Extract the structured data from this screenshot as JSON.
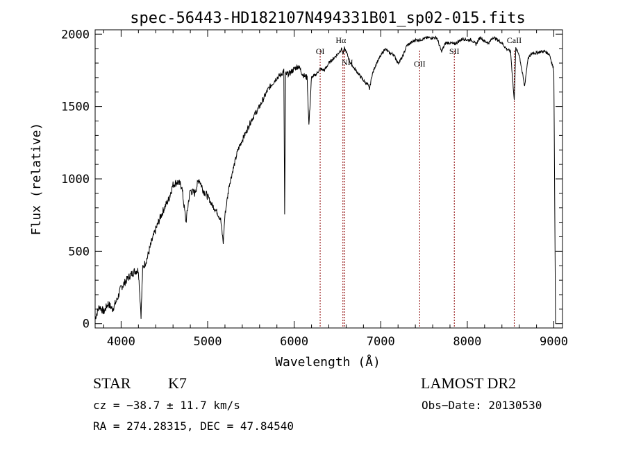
{
  "chart_data": {
    "type": "line",
    "title": "spec-56443-HD182107N494331B01_sp02-015.fits",
    "xlabel": "Wavelength (Å)",
    "ylabel": "Flux (relative)",
    "xlim": [
      3700,
      9100
    ],
    "ylim": [
      -30,
      2030
    ],
    "grid": false,
    "x_ticks": [
      4000,
      5000,
      6000,
      7000,
      8000,
      9000
    ],
    "x_tick_labels": [
      "4000",
      "5000",
      "6000",
      "7000",
      "8000",
      "9000"
    ],
    "y_ticks": [
      0,
      500,
      1000,
      1500,
      2000
    ],
    "y_tick_labels": [
      "0",
      "500",
      "1000",
      "1500",
      "2000"
    ],
    "series": [
      {
        "x": [
          3700,
          3750,
          3800,
          3850,
          3900,
          3950,
          4000,
          4050,
          4100,
          4150,
          4200,
          4230,
          4250,
          4300,
          4350,
          4400,
          4450,
          4500,
          4550,
          4600,
          4650,
          4700,
          4730,
          4750,
          4780,
          4800,
          4850,
          4900,
          4950,
          5000,
          5050,
          5100,
          5150,
          5180,
          5200,
          5250,
          5300,
          5350,
          5400,
          5450,
          5500,
          5550,
          5600,
          5650,
          5700,
          5750,
          5800,
          5850,
          5880,
          5890,
          5900,
          5950,
          6000,
          6050,
          6100,
          6150,
          6170,
          6200,
          6250,
          6300,
          6350,
          6400,
          6450,
          6500,
          6550,
          6563,
          6580,
          6600,
          6650,
          6700,
          6750,
          6800,
          6850,
          6870,
          6900,
          6950,
          7000,
          7050,
          7100,
          7150,
          7200,
          7250,
          7300,
          7350,
          7400,
          7450,
          7500,
          7550,
          7600,
          7650,
          7700,
          7750,
          7800,
          7850,
          7900,
          7950,
          8000,
          8050,
          8100,
          8150,
          8200,
          8250,
          8300,
          8350,
          8400,
          8450,
          8500,
          8542,
          8560,
          8600,
          8662,
          8700,
          8750,
          8800,
          8850,
          8900,
          8950,
          9000,
          9020
        ],
        "y": [
          40,
          120,
          80,
          140,
          100,
          160,
          250,
          290,
          330,
          360,
          370,
          60,
          380,
          450,
          560,
          650,
          730,
          800,
          860,
          960,
          980,
          950,
          800,
          700,
          850,
          920,
          900,
          1000,
          920,
          880,
          820,
          780,
          720,
          560,
          750,
          960,
          1080,
          1200,
          1270,
          1330,
          1400,
          1450,
          1500,
          1560,
          1620,
          1660,
          1700,
          1720,
          1750,
          760,
          1720,
          1730,
          1760,
          1780,
          1720,
          1700,
          1370,
          1700,
          1720,
          1760,
          1750,
          1800,
          1830,
          1860,
          1900,
          1860,
          1900,
          1880,
          1800,
          1760,
          1720,
          1680,
          1650,
          1620,
          1720,
          1800,
          1850,
          1900,
          1870,
          1860,
          1800,
          1840,
          1920,
          1940,
          1960,
          1960,
          1970,
          1975,
          1975,
          1975,
          1880,
          1940,
          1940,
          1930,
          1950,
          1970,
          1960,
          1960,
          1930,
          1980,
          1950,
          1940,
          1980,
          1960,
          1940,
          1900,
          1880,
          1540,
          1900,
          1860,
          1640,
          1830,
          1870,
          1870,
          1880,
          1880,
          1860,
          1750,
          0
        ]
      }
    ],
    "annotations": [
      {
        "label": "OI",
        "x": 6300
      },
      {
        "label": "Hα",
        "x": 6563
      },
      {
        "label": "NII",
        "x": 6583
      },
      {
        "label": "OII",
        "x": 7450
      },
      {
        "label": "SII",
        "x": 7850
      },
      {
        "label": "CaII",
        "x": 8542
      }
    ]
  },
  "info": {
    "object_type": "STAR",
    "subclass": "K7",
    "survey": "LAMOST DR2",
    "cz_text": "cz = −38.7 ± 11.7 km/s",
    "obs_date_text": "Obs−Date: 20130530",
    "coords_text": "RA = 274.28315, DEC =  47.84540"
  },
  "colors": {
    "spectrum": "#000000",
    "line_marker": "#8b0000"
  }
}
